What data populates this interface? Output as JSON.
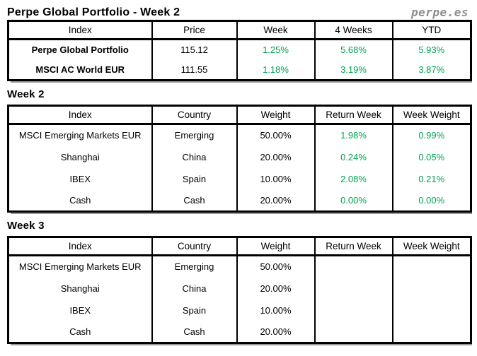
{
  "page": {
    "title": "Perpe Global Portfolio - Week 2",
    "brand": "perpe.es"
  },
  "colors": {
    "positive_green": "#00A050",
    "brand_gray": "#8C8C8C",
    "border_black": "#000000",
    "shadow_gray": "#999999"
  },
  "summary_table": {
    "headers": [
      "Index",
      "Price",
      "Week",
      "4 Weeks",
      "YTD"
    ],
    "rows": [
      {
        "index": "Perpe Global Portfolio",
        "price": "115.12",
        "week": "1.25%",
        "four_weeks": "5.68%",
        "ytd": "5.93%"
      },
      {
        "index": "MSCI AC World EUR",
        "price": "111.55",
        "week": "1.18%",
        "four_weeks": "3.19%",
        "ytd": "3.87%"
      }
    ]
  },
  "week2": {
    "heading": "Week 2",
    "headers": [
      "Index",
      "Country",
      "Weight",
      "Return Week",
      "Week Weight"
    ],
    "rows": [
      {
        "index": "MSCI Emerging Markets EUR",
        "country": "Emerging",
        "weight": "50.00%",
        "return_week": "1.98%",
        "week_weight": "0.99%"
      },
      {
        "index": "Shanghai",
        "country": "China",
        "weight": "20.00%",
        "return_week": "0.24%",
        "week_weight": "0.05%"
      },
      {
        "index": "IBEX",
        "country": "Spain",
        "weight": "10.00%",
        "return_week": "2.08%",
        "week_weight": "0.21%"
      },
      {
        "index": "Cash",
        "country": "Cash",
        "weight": "20.00%",
        "return_week": "0.00%",
        "week_weight": "0.00%"
      }
    ]
  },
  "week3": {
    "heading": "Week 3",
    "headers": [
      "Index",
      "Country",
      "Weight",
      "Return Week",
      "Week Weight"
    ],
    "rows": [
      {
        "index": "MSCI Emerging Markets EUR",
        "country": "Emerging",
        "weight": "50.00%",
        "return_week": "",
        "week_weight": ""
      },
      {
        "index": "Shanghai",
        "country": "China",
        "weight": "20.00%",
        "return_week": "",
        "week_weight": ""
      },
      {
        "index": "IBEX",
        "country": "Spain",
        "weight": "10.00%",
        "return_week": "",
        "week_weight": ""
      },
      {
        "index": "Cash",
        "country": "Cash",
        "weight": "20.00%",
        "return_week": "",
        "week_weight": ""
      }
    ]
  }
}
